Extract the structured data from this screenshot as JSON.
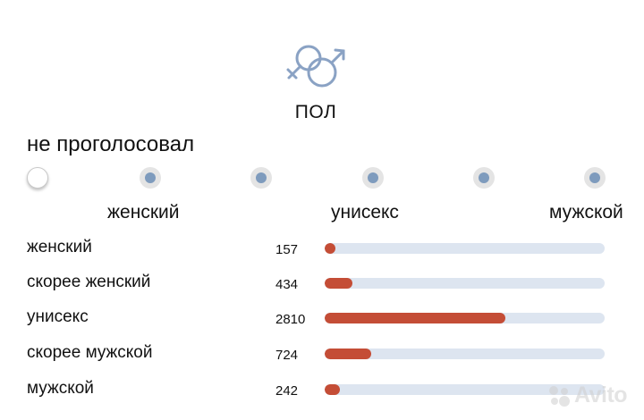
{
  "section": {
    "title": "ПОЛ",
    "icon": "gender-symbols-icon"
  },
  "vote_status": "не проголосовал",
  "scale": {
    "options": 6,
    "selected_index": 0,
    "labels": {
      "left": "женский",
      "middle": "унисекс",
      "right": "мужской"
    }
  },
  "results": [
    {
      "label": "женский",
      "count": "157",
      "share": 0.036
    },
    {
      "label": "скорее женский",
      "count": "434",
      "share": 0.1
    },
    {
      "label": "унисекс",
      "count": "2810",
      "share": 0.645
    },
    {
      "label": "скорее мужской",
      "count": "724",
      "share": 0.166
    },
    {
      "label": "мужской",
      "count": "242",
      "share": 0.055
    }
  ],
  "watermark": {
    "text": "Avito",
    "icon": "avito-dots-icon"
  },
  "colors": {
    "bar_fill": "#c44d36",
    "bar_track": "#dde5f0",
    "scale_dot": "#7e9bbd",
    "icon": "#8aa2c4",
    "watermark": "#cfcfcf"
  }
}
